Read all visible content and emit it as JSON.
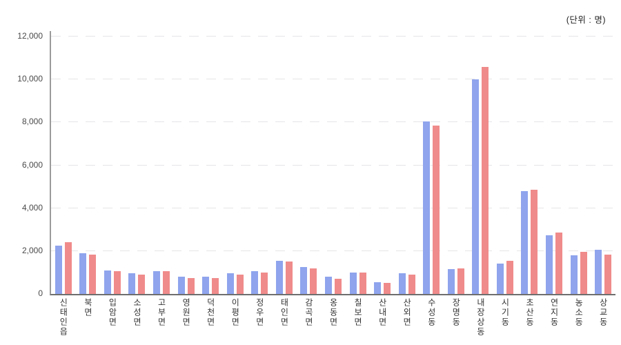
{
  "unit_label": "(단위 : 명)",
  "chart_data": {
    "type": "bar",
    "title": "",
    "unit_note": "(단위 : 명)",
    "categories": [
      "신태인읍",
      "북면",
      "입암면",
      "소성면",
      "고부면",
      "영원면",
      "덕천면",
      "이평면",
      "정우면",
      "태인면",
      "감곡면",
      "옹동면",
      "칠보면",
      "산내면",
      "산외면",
      "수성동",
      "장명동",
      "내장상동",
      "시기동",
      "초산동",
      "연지동",
      "농소동",
      "상교동"
    ],
    "series": [
      {
        "name": "series_1_blue",
        "color": "#8fa4ed",
        "values": [
          2250,
          1900,
          1100,
          950,
          1050,
          800,
          800,
          950,
          1050,
          1550,
          1250,
          800,
          1000,
          550,
          950,
          8050,
          1150,
          10000,
          1400,
          4800,
          2750,
          1800,
          2050
        ]
      },
      {
        "name": "series_2_red",
        "color": "#f08b8b",
        "values": [
          2400,
          1850,
          1050,
          900,
          1050,
          750,
          750,
          900,
          1000,
          1500,
          1200,
          700,
          1000,
          500,
          900,
          7850,
          1200,
          10600,
          1550,
          4850,
          2850,
          1950,
          1850
        ]
      }
    ],
    "ylim": [
      0,
      12000
    ],
    "ytick_step": 2000,
    "ytick_labels": [
      "0",
      "2,000",
      "4,000",
      "6,000",
      "8,000",
      "10,000",
      "12,000"
    ],
    "grid": "horizontal-dashed",
    "legend_position": "none",
    "axis_colors": {
      "y_axis": "#9b9b9b",
      "x_axis": "#6e6e6e",
      "gridline": "#e5e5e8",
      "tick_text": "#494949",
      "category_text": "#333333"
    }
  }
}
